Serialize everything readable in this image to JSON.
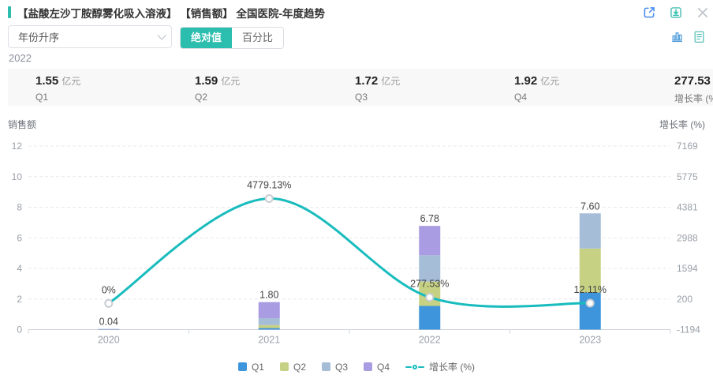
{
  "header": {
    "title": "【盐酸左沙丁胺醇雾化吸入溶液】 【销售额】 全国医院-年度趋势",
    "accent_color": "#2bbdad",
    "icons": [
      "external-link-icon",
      "download-icon",
      "close-icon"
    ]
  },
  "toolbar": {
    "sort_select": {
      "value": "年份升序",
      "icon": "chevron-down-icon"
    },
    "view_toggle": {
      "options": [
        "绝对值",
        "百分比"
      ],
      "selected": "绝对值",
      "active_color": "#2bbdad"
    },
    "icons": [
      "bar-chart-icon",
      "document-icon"
    ]
  },
  "stats": {
    "year_label": "2022",
    "items": [
      {
        "value": "1.55",
        "unit": "亿元",
        "label": "Q1"
      },
      {
        "value": "1.59",
        "unit": "亿元",
        "label": "Q2"
      },
      {
        "value": "1.72",
        "unit": "亿元",
        "label": "Q3"
      },
      {
        "value": "1.92",
        "unit": "亿元",
        "label": "Q4"
      },
      {
        "value": "277.53",
        "unit": "%",
        "label": "增长率 (%)"
      }
    ]
  },
  "chart_data": {
    "type": "bar",
    "subtype": "stacked-bars-with-smooth-line",
    "categories": [
      "2020",
      "2021",
      "2022",
      "2023"
    ],
    "series": [
      {
        "name": "Q1",
        "type": "bar",
        "color": "#3e95db",
        "values": [
          0.01,
          0.1,
          1.55,
          2.42
        ]
      },
      {
        "name": "Q2",
        "type": "bar",
        "color": "#c6d184",
        "values": [
          0.01,
          0.2,
          1.59,
          2.88
        ]
      },
      {
        "name": "Q3",
        "type": "bar",
        "color": "#a5bdd7",
        "values": [
          0.01,
          0.45,
          1.72,
          2.3
        ]
      },
      {
        "name": "Q4",
        "type": "bar",
        "color": "#a99ce2",
        "values": [
          0.01,
          1.05,
          1.92,
          0
        ]
      },
      {
        "name": "增长率 (%)",
        "type": "line",
        "axis": "right",
        "color": "#19bcbe",
        "values": [
          0,
          4779.13,
          277.53,
          12.11
        ],
        "point_labels": [
          "0%",
          "4779.13%",
          "277.53%",
          "12.11%"
        ]
      }
    ],
    "bar_totals": [
      0.04,
      1.8,
      6.78,
      7.6
    ],
    "bar_total_labels": [
      "0.04",
      "1.80",
      "6.78",
      "7.60"
    ],
    "left_axis": {
      "title": "销售额",
      "min": 0,
      "max": 12,
      "ticks": [
        0,
        2,
        4,
        6,
        8,
        10,
        12
      ]
    },
    "right_axis": {
      "title": "增长率 (%)",
      "min": -1194,
      "max": 7169,
      "ticks": [
        -1194,
        200,
        1594,
        2988,
        4381,
        5775,
        7169
      ]
    },
    "grid": "dashed horizontal",
    "legend_position": "bottom",
    "marker_style": {
      "fill": "#ffffff",
      "stroke": "#c9cdd2"
    }
  },
  "legend": {
    "items": [
      {
        "label": "Q1",
        "color": "#3e95db",
        "type": "bar"
      },
      {
        "label": "Q2",
        "color": "#c6d184",
        "type": "bar"
      },
      {
        "label": "Q3",
        "color": "#a5bdd7",
        "type": "bar"
      },
      {
        "label": "Q4",
        "color": "#a99ce2",
        "type": "bar"
      },
      {
        "label": "增长率 (%)",
        "color": "#19bcbe",
        "type": "line"
      }
    ]
  }
}
